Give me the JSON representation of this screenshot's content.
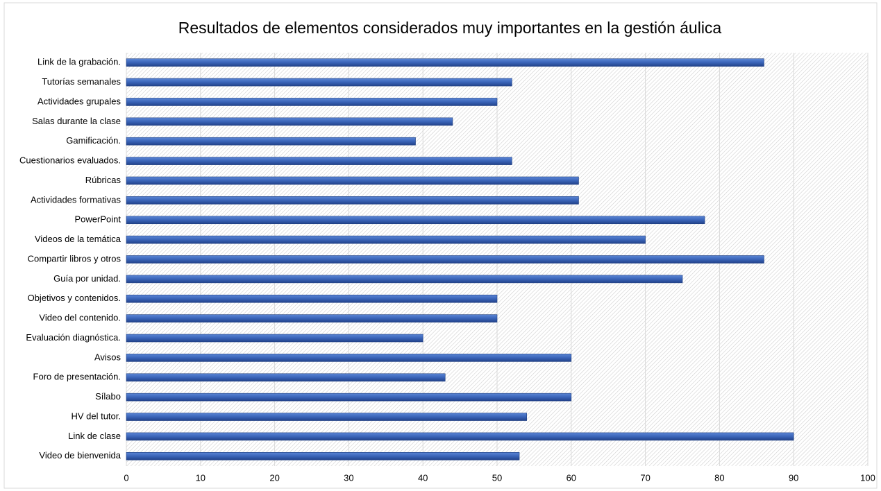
{
  "chart_data": {
    "type": "barh",
    "title": "Resultados de elementos considerados muy importantes en la gestión áulica",
    "categories": [
      "Link de la grabación.",
      "Tutorías semanales",
      "Actividades grupales",
      "Salas durante la clase",
      "Gamificación.",
      "Cuestionarios evaluados.",
      "Rúbricas",
      "Actividades formativas",
      "PowerPoint",
      "Videos de la temática",
      "Compartir libros y otros",
      "Guía por unidad.",
      "Objetivos y contenidos.",
      "Video del contenido.",
      "Evaluación diagnóstica.",
      "Avisos",
      "Foro de presentación.",
      "Sílabo",
      "HV del tutor.",
      "Link de clase",
      "Video de bienvenida"
    ],
    "values": [
      86,
      52,
      50,
      44,
      39,
      52,
      61,
      61,
      78,
      70,
      86,
      75,
      50,
      50,
      40,
      60,
      43,
      60,
      54,
      90,
      53
    ],
    "color": "#3a64b8",
    "xlim": [
      0,
      100
    ],
    "xticks": [
      0,
      10,
      20,
      30,
      40,
      50,
      60,
      70,
      80,
      90,
      100
    ],
    "grid": true
  }
}
